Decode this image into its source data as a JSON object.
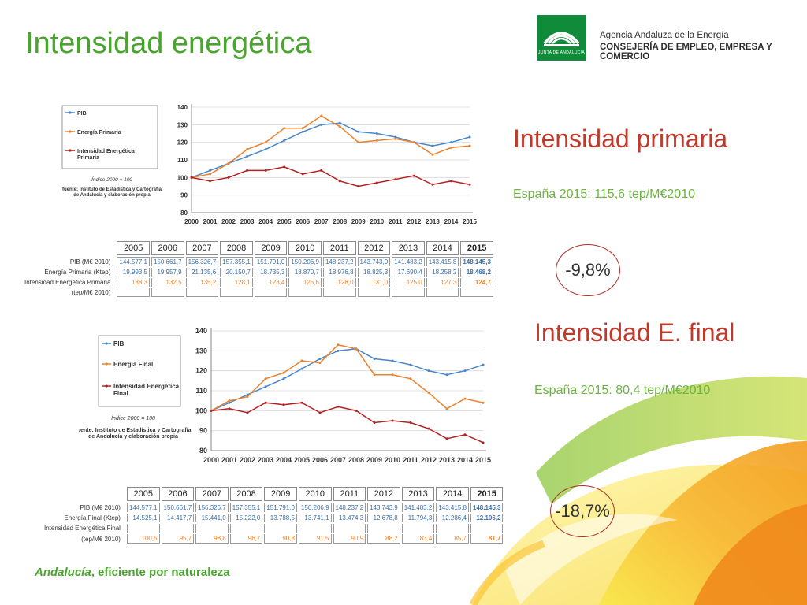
{
  "title": "Intensidad energética",
  "header": {
    "logo_text": "JUNTA DE ANDALUCIA",
    "agency": "Agencia Andaluza de la Energía",
    "ministry": "CONSEJERÍA DE EMPLEO, EMPRESA Y COMERCIO"
  },
  "footer": {
    "brand": "Andalucía",
    "slogan": ", eficiente por naturaleza"
  },
  "colors": {
    "pib": "#4a86c8",
    "energy": "#e8822f",
    "intensity": "#b22222",
    "title_green": "#4aa52e",
    "heading_red": "#c0392b"
  },
  "sections": {
    "primary": {
      "heading": "Intensidad primaria",
      "spain": "España 2015: 115,6 tep/M€2010",
      "change": "-9,8%",
      "legend": [
        "PIB",
        "Energía Primaria",
        "Intensidad Energética Primaria"
      ],
      "note": "Índice 2000 = 100",
      "source": "fuente: Instituto de Estadística y Cartografía de Andalucía y elaboración propia"
    },
    "final": {
      "heading": "Intensidad E. final",
      "spain": "España 2015: 80,4 tep/M€2010",
      "change": "-18,7%",
      "legend": [
        "PIB",
        "Energía Final",
        "Intensidad Energética Final"
      ],
      "note": "Índice 2000 = 100",
      "source": "fuente: Instituto de Estadística y Cartografía de Andalucía y elaboración propia"
    }
  },
  "tables": {
    "primary": {
      "years": [
        "2005",
        "2006",
        "2007",
        "2008",
        "2009",
        "2010",
        "2011",
        "2012",
        "2013",
        "2014",
        "2015"
      ],
      "rows": [
        {
          "label": "PIB (M€ 2010)",
          "values": [
            "144.577,1",
            "150.661,7",
            "156.326,7",
            "157.355,1",
            "151.791,0",
            "150.206,9",
            "148.237,2",
            "143.743,9",
            "141.483,2",
            "143.415,8",
            "148.145,3"
          ]
        },
        {
          "label": "Energía Primaria (Ktep)",
          "values": [
            "19.993,5",
            "19.957,9",
            "21.135,6",
            "20.150,7",
            "18.735,3",
            "18.870,7",
            "18.976,8",
            "18.825,3",
            "17.690,4",
            "18.258,2",
            "18.468,2"
          ]
        },
        {
          "label": "Intensidad Energética Primaria",
          "values": [
            "138,3",
            "132,5",
            "135,2",
            "128,1",
            "123,4",
            "125,6",
            "128,0",
            "131,0",
            "125,0",
            "127,3",
            "124,7"
          ]
        },
        {
          "label": "(tep/M€ 2010)",
          "values": []
        }
      ]
    },
    "final": {
      "years": [
        "2005",
        "2006",
        "2007",
        "2008",
        "2009",
        "2010",
        "2011",
        "2012",
        "2013",
        "2014",
        "2015"
      ],
      "rows": [
        {
          "label": "PIB (M€ 2010)",
          "values": [
            "144.577,1",
            "150.661,7",
            "156.326,7",
            "157.355,1",
            "151.791,0",
            "150.206,9",
            "148.237,2",
            "143.743,9",
            "141.483,2",
            "143.415,8",
            "148.145,3"
          ]
        },
        {
          "label": "Energía Final (Ktep)",
          "values": [
            "14.525,1",
            "14.417,7",
            "15.441,0",
            "15.222,0",
            "13.788,5",
            "13.741,1",
            "13.474,3",
            "12.678,8",
            "11.794,3",
            "12.286,4",
            "12.106,2"
          ]
        },
        {
          "label": "Intensidad Energética Final",
          "values": []
        },
        {
          "label": "(tep/M€ 2010)",
          "values": [
            "100,5",
            "95,7",
            "98,8",
            "96,7",
            "90,8",
            "91,5",
            "90,9",
            "88,2",
            "83,4",
            "85,7",
            "81,7"
          ]
        }
      ]
    }
  },
  "chart_data": [
    {
      "type": "line",
      "x": [
        "2000",
        "2001",
        "2002",
        "2003",
        "2004",
        "2005",
        "2006",
        "2007",
        "2008",
        "2009",
        "2010",
        "2011",
        "2012",
        "2013",
        "2014",
        "2015"
      ],
      "ylim": [
        80,
        140
      ],
      "yticks": [
        80,
        90,
        100,
        110,
        120,
        130,
        140
      ],
      "grid": true,
      "legend": "left",
      "series": [
        {
          "name": "PIB",
          "values": [
            100,
            104,
            108,
            112,
            116,
            121,
            126,
            130,
            131,
            126,
            125,
            123,
            120,
            118,
            120,
            123
          ]
        },
        {
          "name": "Energía Primaria",
          "values": [
            100,
            102,
            108,
            116,
            120,
            128,
            128,
            135,
            129,
            120,
            121,
            122,
            120,
            113,
            117,
            118
          ]
        },
        {
          "name": "Intensidad Energética Primaria",
          "values": [
            100,
            98,
            100,
            104,
            104,
            106,
            102,
            104,
            98,
            95,
            97,
            99,
            101,
            96,
            98,
            96
          ]
        }
      ]
    },
    {
      "type": "line",
      "x": [
        "2000",
        "2001",
        "2002",
        "2003",
        "2004",
        "2005",
        "2006",
        "2007",
        "2008",
        "2009",
        "2010",
        "2011",
        "2012",
        "2013",
        "2014",
        "2015"
      ],
      "ylim": [
        80,
        140
      ],
      "yticks": [
        80,
        90,
        100,
        110,
        120,
        130,
        140
      ],
      "grid": true,
      "legend": "left",
      "series": [
        {
          "name": "PIB",
          "values": [
            100,
            104,
            108,
            112,
            116,
            121,
            126,
            130,
            131,
            126,
            125,
            123,
            120,
            118,
            120,
            123
          ]
        },
        {
          "name": "Energía Final",
          "values": [
            100,
            105,
            107,
            116,
            119,
            125,
            124,
            133,
            131,
            118,
            118,
            116,
            109,
            101,
            106,
            104
          ]
        },
        {
          "name": "Intensidad Energética Final",
          "values": [
            100,
            101,
            99,
            104,
            103,
            104,
            99,
            102,
            100,
            94,
            95,
            94,
            91,
            86,
            88,
            84
          ]
        }
      ]
    }
  ]
}
